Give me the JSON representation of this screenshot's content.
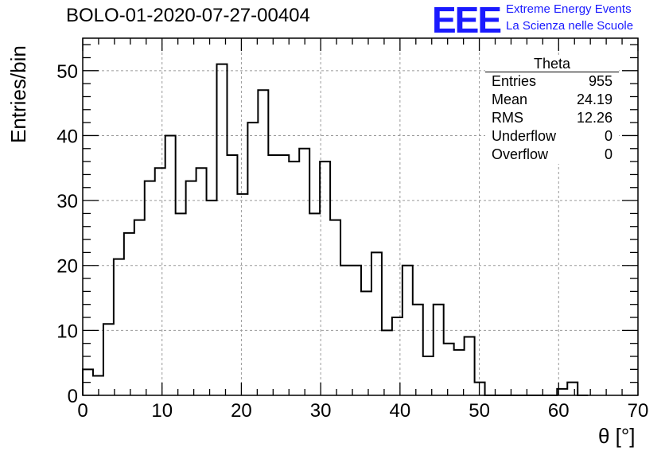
{
  "title": "BOLO-01-2020-07-27-00404",
  "logo": {
    "text": "EEE",
    "line1": "Extreme Energy Events",
    "line2": "La Scienza nelle Scuole",
    "color": "#1a1aff"
  },
  "stats": {
    "name": "Theta",
    "rows": [
      {
        "label": "Entries",
        "value": "955"
      },
      {
        "label": "Mean",
        "value": "24.19"
      },
      {
        "label": "RMS",
        "value": "12.26"
      },
      {
        "label": "Underflow",
        "value": "0"
      },
      {
        "label": "Overflow",
        "value": "0"
      }
    ]
  },
  "chart_data": {
    "type": "histogram",
    "xlabel": "θ [°]",
    "ylabel": "Entries/bin",
    "xlim": [
      0,
      70
    ],
    "ylim": [
      0,
      55
    ],
    "bin_width": 1.3,
    "bin_start": 0,
    "values": [
      4,
      3,
      11,
      21,
      25,
      27,
      33,
      35,
      40,
      28,
      33,
      35,
      30,
      51,
      37,
      31,
      42,
      47,
      37,
      37,
      36,
      38,
      28,
      36,
      27,
      20,
      20,
      16,
      22,
      10,
      12,
      20,
      14,
      6,
      14,
      8,
      7,
      9,
      2,
      0,
      0,
      0,
      0,
      0,
      0,
      0,
      1,
      2,
      0
    ],
    "xticks": [
      0,
      10,
      20,
      30,
      40,
      50,
      60,
      70
    ],
    "yticks": [
      0,
      10,
      20,
      30,
      40,
      50
    ],
    "grid": true
  }
}
